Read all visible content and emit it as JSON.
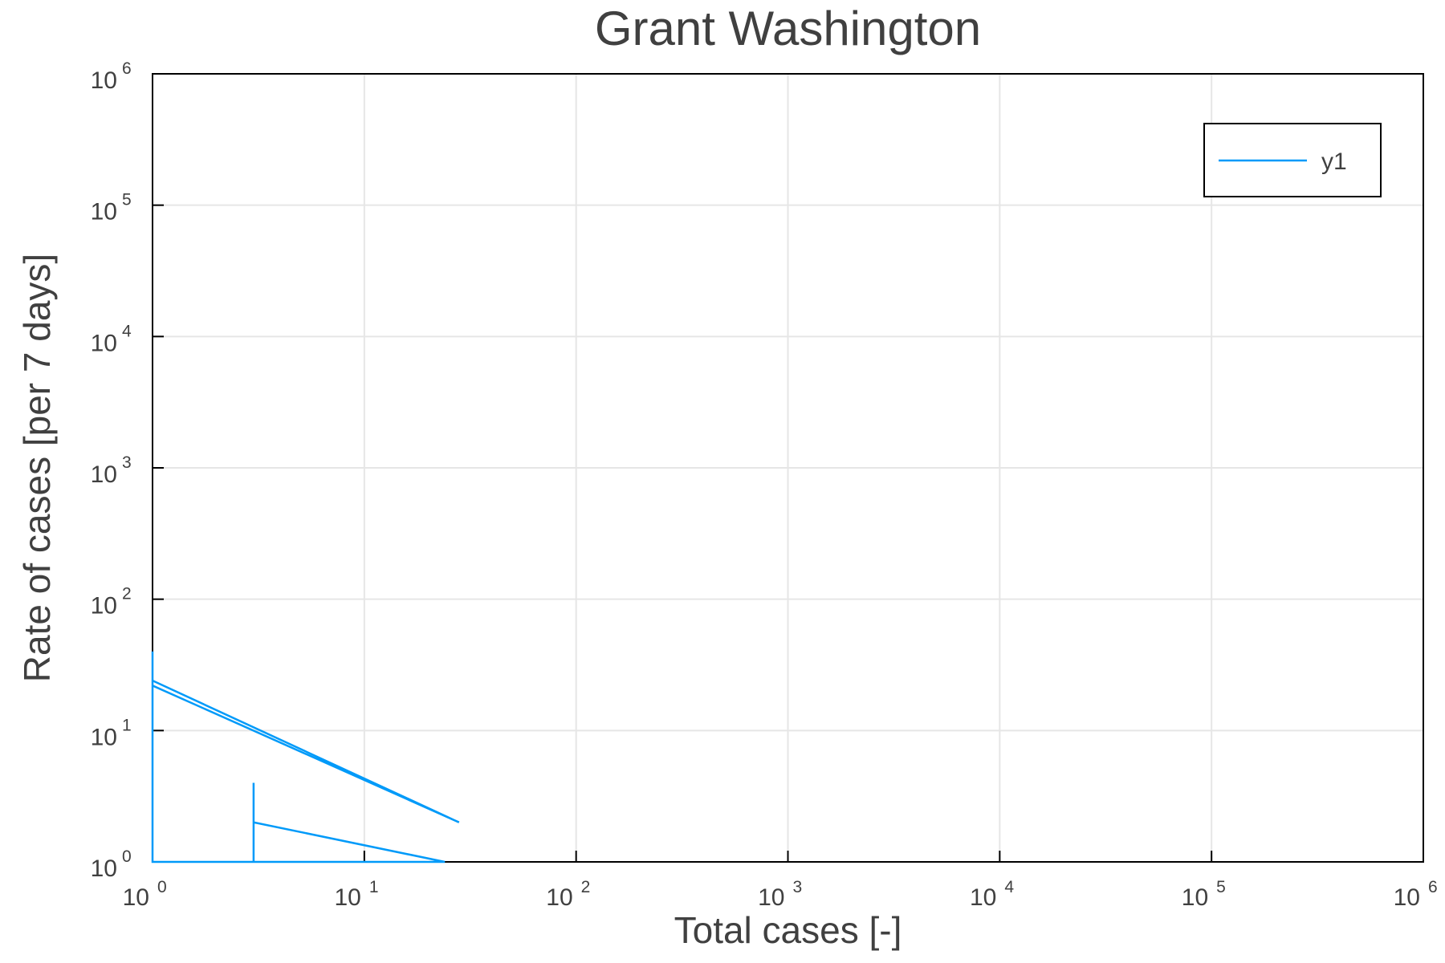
{
  "chart_data": {
    "type": "line",
    "title": "Grant Washington",
    "xlabel": "Total cases [-]",
    "ylabel": "Rate of cases [per 7 days]",
    "xscale": "log",
    "yscale": "log",
    "xlim": [
      1,
      1000000
    ],
    "ylim": [
      1,
      1000000
    ],
    "grid": true,
    "legend_position": "top-right",
    "tick_base": "10",
    "x_tick_exponents": [
      "0",
      "1",
      "2",
      "3",
      "4",
      "5",
      "6"
    ],
    "y_tick_exponents": [
      "0",
      "1",
      "2",
      "3",
      "4",
      "5",
      "6"
    ],
    "series": [
      {
        "name": "y1",
        "color": "#009af9",
        "x": [
          1,
          1,
          1,
          1,
          28,
          1,
          1,
          24,
          3,
          3,
          3
        ],
        "y": [
          1,
          5,
          40,
          24,
          2,
          22,
          1,
          1,
          2,
          4,
          1
        ]
      }
    ]
  }
}
